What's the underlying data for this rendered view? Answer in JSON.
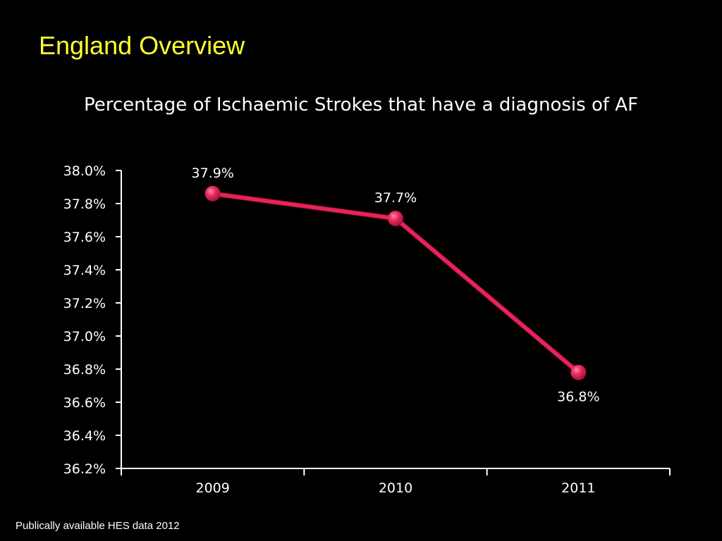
{
  "slide": {
    "title": "England Overview",
    "footnote": "Publically available HES data 2012"
  },
  "colors": {
    "background": "#000000",
    "title": "#ffff33",
    "text": "#ffffff",
    "series": "#e8245a",
    "axis": "#ffffff"
  },
  "chart_data": {
    "type": "line",
    "title": "Percentage of Ischaemic Strokes that have a diagnosis of AF",
    "xlabel": "",
    "ylabel": "",
    "categories": [
      "2009",
      "2010",
      "2011"
    ],
    "series": [
      {
        "values": [
          37.86,
          37.71,
          36.78
        ],
        "data_labels": [
          "37.9%",
          "37.7%",
          "36.8%"
        ]
      }
    ],
    "ylim": [
      36.2,
      38.0
    ],
    "y_ticks": [
      38.0,
      37.8,
      37.6,
      37.4,
      37.2,
      37.0,
      36.8,
      36.6,
      36.4,
      36.2
    ],
    "y_tick_labels": [
      "38.0%",
      "37.8%",
      "37.6%",
      "37.4%",
      "37.2%",
      "37.0%",
      "36.8%",
      "36.6%",
      "36.4%",
      "36.2%"
    ],
    "grid": false,
    "legend": "none"
  }
}
